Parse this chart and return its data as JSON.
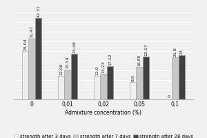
{
  "categories": [
    "0",
    "0,01",
    "0,02",
    "0,05",
    "0,1"
  ],
  "series": {
    "strength after 3 days": [
      25.04,
      12.06,
      12.0,
      8.9,
      0
    ],
    "strength after 7 days": [
      31.47,
      15.54,
      13.23,
      16.85,
      21.8
    ],
    "strength after 28 days": [
      42.31,
      23.46,
      17.12,
      22.17,
      23.0
    ]
  },
  "bar_colors": [
    "#efefef",
    "#c8c8c8",
    "#404040"
  ],
  "xlabel": "Admixture concentration (%)",
  "legend_labels": [
    "strength after 3 days",
    "strength after 7 days",
    "strength after 28 days"
  ],
  "value_labels": {
    "strength after 3 days": [
      "25,04",
      "12,06",
      "12,0",
      "8,9",
      "0"
    ],
    "strength after 7 days": [
      "31,47",
      "15,54",
      "13,23",
      "16,85",
      "21,8"
    ],
    "strength after 28 days": [
      "42,31",
      "23,46",
      "17,12",
      "22,17",
      "23"
    ]
  },
  "background_color": "#f0f0f0",
  "grid_color": "#ffffff",
  "bar_edge_color": "#999999",
  "label_fontsize": 4.5,
  "axis_fontsize": 5.5,
  "legend_fontsize": 5.0,
  "ylim": [
    0,
    50
  ],
  "bar_width": 0.18,
  "group_width": 1.0
}
